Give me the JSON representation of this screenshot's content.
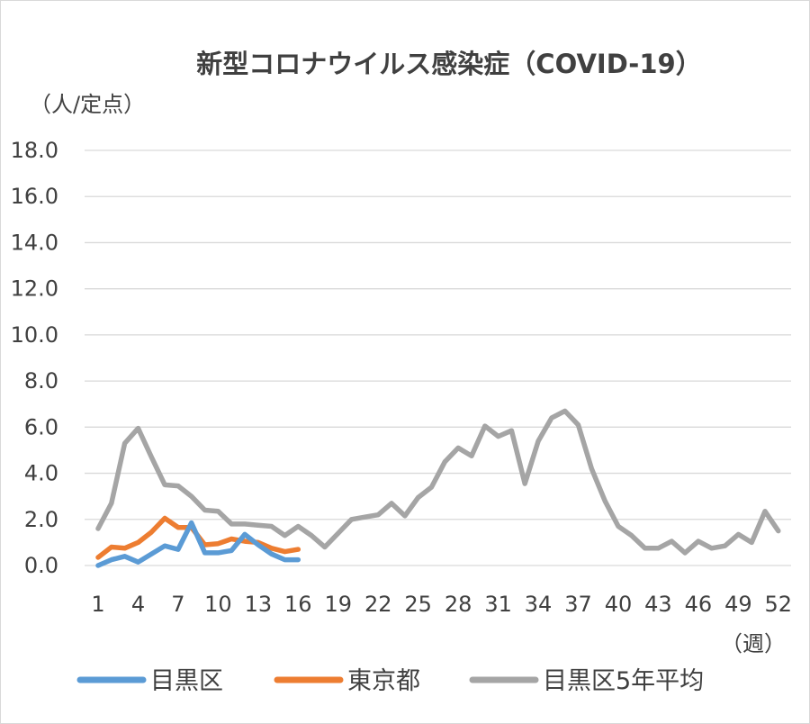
{
  "chart_data": {
    "type": "line",
    "title": "新型コロナウイルス感染症（COVID-19）",
    "ylabel": "（人/定点）",
    "xlabel": "（週）",
    "ylim": [
      0,
      18
    ],
    "yticks": [
      "0.0",
      "2.0",
      "4.0",
      "6.0",
      "8.0",
      "10.0",
      "12.0",
      "14.0",
      "16.0",
      "18.0"
    ],
    "xticks": [
      "1",
      "4",
      "7",
      "10",
      "13",
      "16",
      "19",
      "22",
      "25",
      "28",
      "31",
      "34",
      "37",
      "40",
      "43",
      "46",
      "49",
      "52"
    ],
    "grid": true,
    "legend_position": "bottom",
    "series": [
      {
        "name": "目黒区",
        "color": "#5b9bd5",
        "x": [
          1,
          2,
          3,
          4,
          5,
          6,
          7,
          8,
          9,
          10,
          11,
          12,
          13,
          14,
          15,
          16
        ],
        "values": [
          0.0,
          0.25,
          0.4,
          0.15,
          0.5,
          0.85,
          0.7,
          1.85,
          0.55,
          0.55,
          0.65,
          1.35,
          0.9,
          0.5,
          0.25,
          0.25
        ]
      },
      {
        "name": "東京都",
        "color": "#ed7d31",
        "x": [
          1,
          2,
          3,
          4,
          5,
          6,
          7,
          8,
          9,
          10,
          11,
          12,
          13,
          14,
          15,
          16
        ],
        "values": [
          0.35,
          0.8,
          0.75,
          1.0,
          1.45,
          2.05,
          1.65,
          1.65,
          0.9,
          0.95,
          1.15,
          1.05,
          1.0,
          0.75,
          0.6,
          0.7
        ]
      },
      {
        "name": "目黒区5年平均",
        "color": "#a5a5a5",
        "x": [
          1,
          2,
          3,
          4,
          5,
          6,
          7,
          8,
          9,
          10,
          11,
          12,
          13,
          14,
          15,
          16,
          17,
          18,
          19,
          20,
          21,
          22,
          23,
          24,
          25,
          26,
          27,
          28,
          29,
          30,
          31,
          32,
          33,
          34,
          35,
          36,
          37,
          38,
          39,
          40,
          41,
          42,
          43,
          44,
          45,
          46,
          47,
          48,
          49,
          50,
          51,
          52
        ],
        "values": [
          1.6,
          2.7,
          5.3,
          5.95,
          4.7,
          3.5,
          3.45,
          3.0,
          2.4,
          2.35,
          1.8,
          1.8,
          1.75,
          1.7,
          1.3,
          1.7,
          1.3,
          0.8,
          1.4,
          2.0,
          2.1,
          2.2,
          2.7,
          2.15,
          2.95,
          3.4,
          4.5,
          5.1,
          4.75,
          6.05,
          5.6,
          5.85,
          3.55,
          5.4,
          6.4,
          6.7,
          6.1,
          4.2,
          2.8,
          1.7,
          1.3,
          0.75,
          0.75,
          1.05,
          0.55,
          1.05,
          0.75,
          0.85,
          1.35,
          1.0,
          2.35,
          1.5
        ]
      }
    ]
  }
}
